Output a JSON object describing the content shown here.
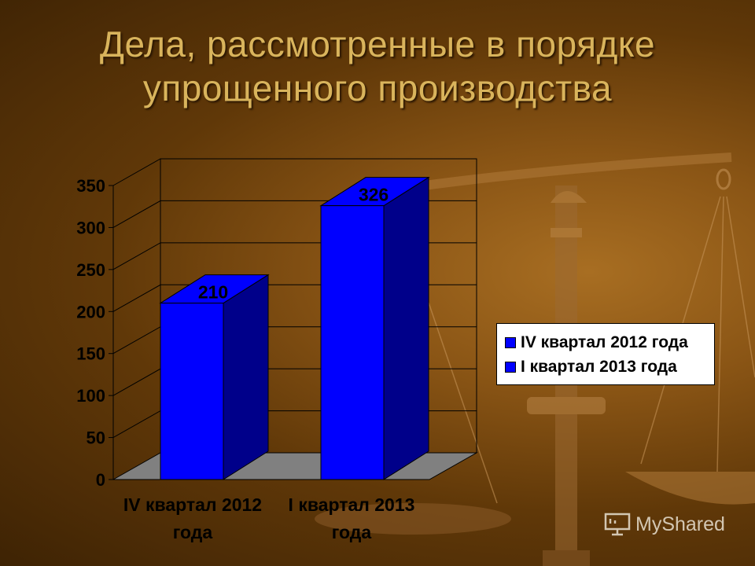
{
  "slide": {
    "title_line1": "Дела, рассмотренные в порядке",
    "title_line2": "упрощенного производства",
    "logo_text": "MyShared"
  },
  "colors": {
    "background": "#7a4a12",
    "title": "#d9b45c",
    "bar_front": "#0000ff",
    "bar_side": "#00008a",
    "floor": "#808080"
  },
  "chart_data": {
    "type": "bar",
    "three_d": true,
    "categories": [
      "IV квартал 2012 года",
      "I квартал 2013 года"
    ],
    "category_label_lines": [
      [
        "IV квартал 2012",
        "года"
      ],
      [
        "I квартал 2013",
        "года"
      ]
    ],
    "values": [
      210,
      326
    ],
    "data_labels": [
      "210",
      "326"
    ],
    "ylim": [
      0,
      350
    ],
    "yticks": [
      0,
      50,
      100,
      150,
      200,
      250,
      300,
      350
    ],
    "ytick_labels": [
      "0",
      "50",
      "100",
      "150",
      "200",
      "250",
      "300",
      "350"
    ],
    "grid": true,
    "legend": {
      "placement": "right",
      "entries": [
        "IV квартал 2012 года",
        "I квартал 2013 года"
      ]
    },
    "title": "",
    "xlabel": "",
    "ylabel": ""
  }
}
